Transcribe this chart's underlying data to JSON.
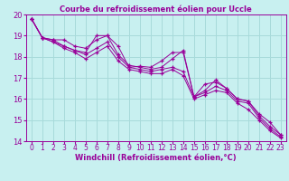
{
  "title": "Courbe du refroidissement éolien pour Uccle",
  "xlabel": "Windchill (Refroidissement éolien,°C)",
  "bg_color": "#c8f0f0",
  "grid_color": "#a8dada",
  "line_color": "#990099",
  "xlim": [
    -0.5,
    23.5
  ],
  "ylim": [
    14,
    20
  ],
  "xticks": [
    0,
    1,
    2,
    3,
    4,
    5,
    6,
    7,
    8,
    9,
    10,
    11,
    12,
    13,
    14,
    15,
    16,
    17,
    18,
    19,
    20,
    21,
    22,
    23
  ],
  "yticks": [
    14,
    15,
    16,
    17,
    18,
    19,
    20
  ],
  "series": [
    [
      19.8,
      18.9,
      18.8,
      18.8,
      18.5,
      18.4,
      18.8,
      19.0,
      18.1,
      17.6,
      17.5,
      17.4,
      17.5,
      17.9,
      18.3,
      16.1,
      16.4,
      16.9,
      16.5,
      16.0,
      15.9,
      15.2,
      14.7,
      14.3
    ],
    [
      19.8,
      18.9,
      18.8,
      18.5,
      18.3,
      18.1,
      18.4,
      18.7,
      18.0,
      17.5,
      17.4,
      17.3,
      17.4,
      17.5,
      17.3,
      16.1,
      16.3,
      16.6,
      16.4,
      15.9,
      15.8,
      15.1,
      14.6,
      14.2
    ],
    [
      19.8,
      18.9,
      18.7,
      18.4,
      18.2,
      17.9,
      18.2,
      18.5,
      17.8,
      17.4,
      17.3,
      17.2,
      17.2,
      17.4,
      17.1,
      16.0,
      16.2,
      16.4,
      16.3,
      15.8,
      15.5,
      15.0,
      14.5,
      14.15
    ],
    [
      19.8,
      18.9,
      18.7,
      18.5,
      18.3,
      18.2,
      19.0,
      19.0,
      18.5,
      17.5,
      17.55,
      17.5,
      17.8,
      18.2,
      18.2,
      16.1,
      16.7,
      16.8,
      16.5,
      16.0,
      15.9,
      15.3,
      14.9,
      14.3
    ]
  ],
  "title_fontsize": 6,
  "xlabel_fontsize": 6,
  "tick_fontsize": 5.5
}
